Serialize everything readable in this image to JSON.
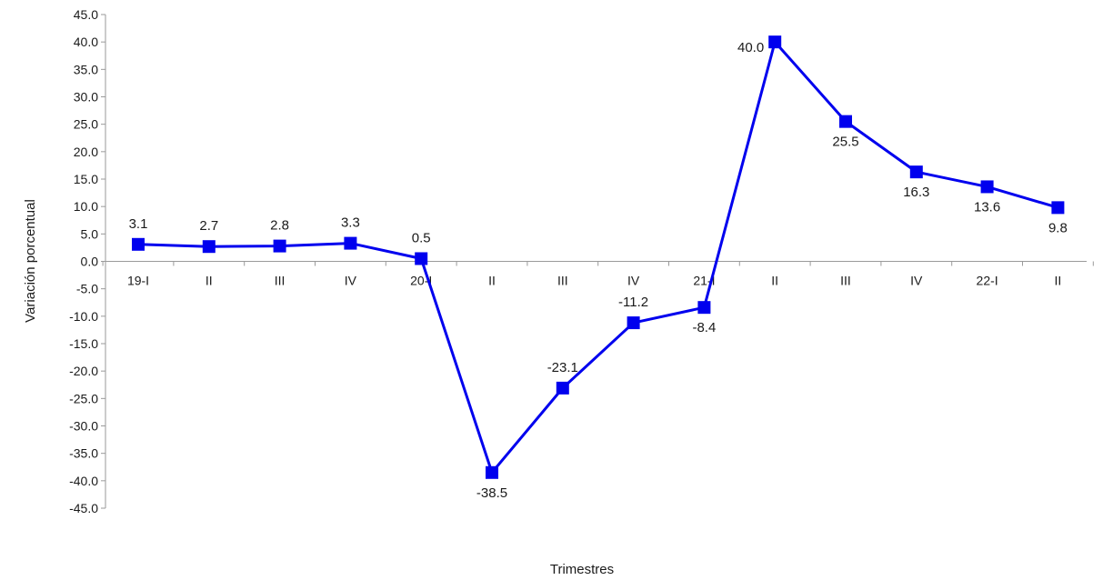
{
  "chart_data": {
    "type": "line",
    "title": "",
    "xlabel": "Trimestres",
    "ylabel": "Variación porcentual",
    "ylim": [
      -45,
      45
    ],
    "yticks": [
      "45.0",
      "40.0",
      "35.0",
      "30.0",
      "25.0",
      "20.0",
      "15.0",
      "10.0",
      "5.0",
      "0.0",
      "-5.0",
      "-10.0",
      "-15.0",
      "-20.0",
      "-25.0",
      "-30.0",
      "-35.0",
      "-40.0",
      "-45.0"
    ],
    "grid": false,
    "legend": "none",
    "categories": [
      "19-I",
      "II",
      "III",
      "IV",
      "20-I",
      "II",
      "III",
      "IV",
      "21-I",
      "II",
      "III",
      "IV",
      "22-I",
      "II"
    ],
    "series": [
      {
        "values": [
          3.1,
          2.7,
          2.8,
          3.3,
          0.5,
          -38.5,
          -23.1,
          -11.2,
          -8.4,
          40.0,
          25.5,
          16.3,
          13.6,
          9.8
        ],
        "labels": [
          "3.1",
          "2.7",
          "2.8",
          "3.3",
          "0.5",
          "-38.5",
          "-23.1",
          "-11.2",
          "-8.4",
          "40.0",
          "25.5",
          "16.3",
          "13.6",
          "9.8"
        ],
        "color": "#0000ee",
        "marker": "square"
      }
    ]
  }
}
